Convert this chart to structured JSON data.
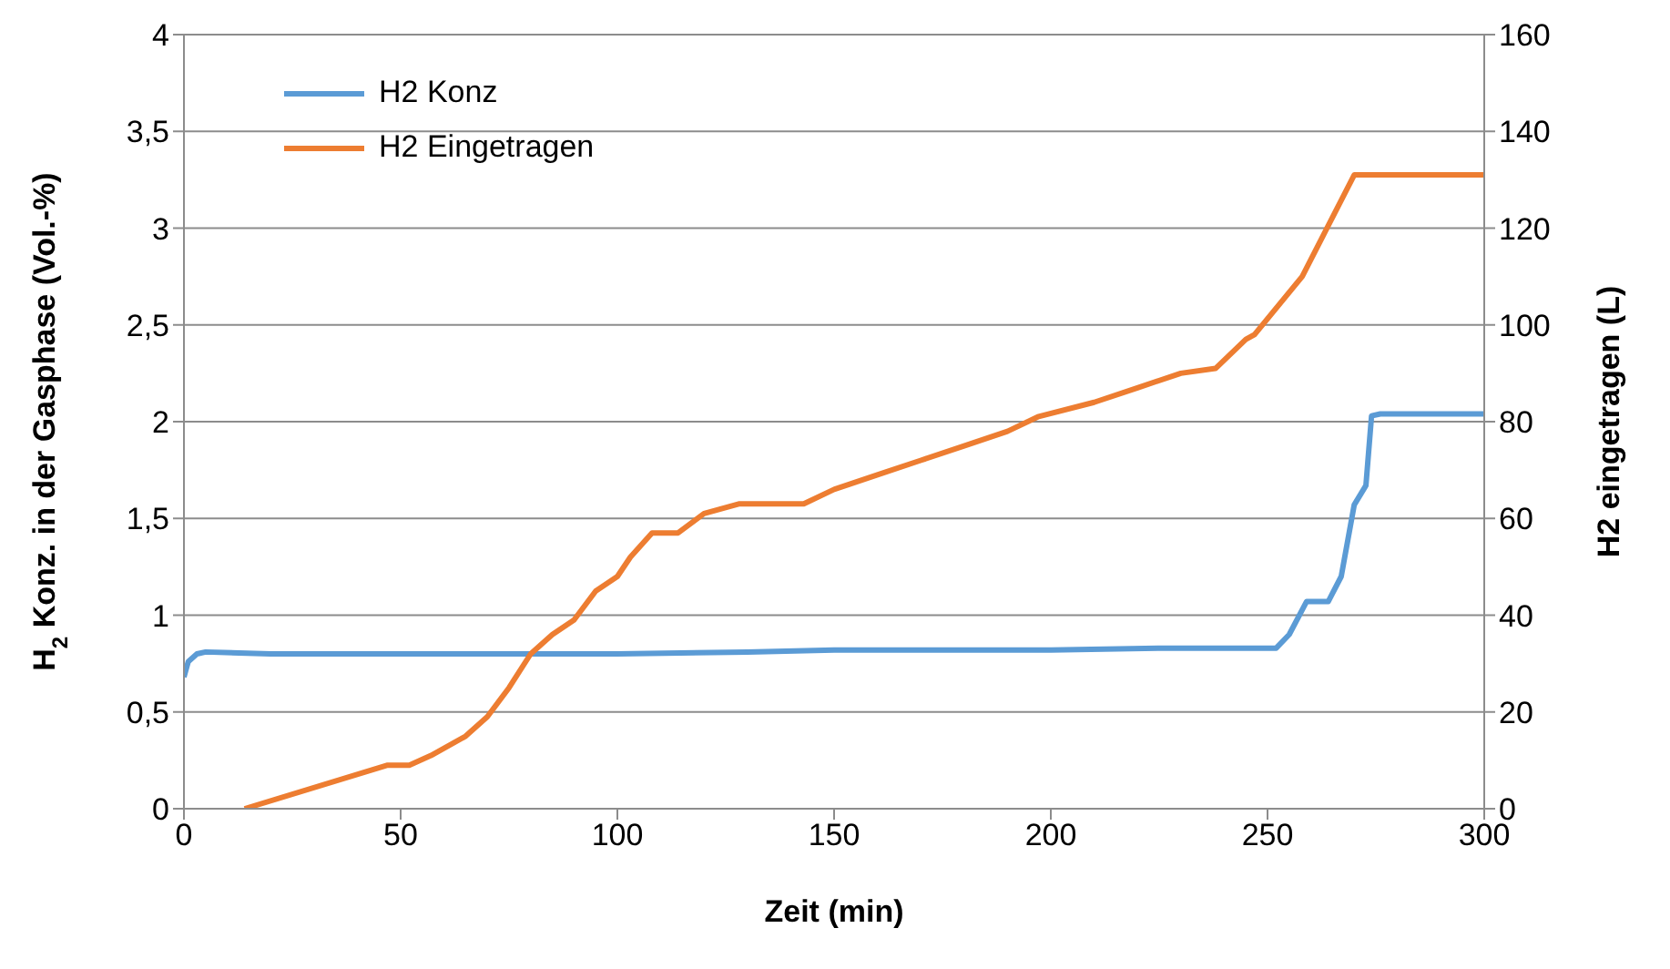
{
  "chart_data": {
    "type": "line",
    "xlabel": "Zeit (min)",
    "ylabel": "H$_{2}$ Konz. in der Gasphase (Vol.-%)",
    "y2label": "H2 eingetragen (L)",
    "xlim": [
      0,
      300
    ],
    "xticks": [
      0,
      50,
      100,
      150,
      200,
      250,
      300
    ],
    "ylim": [
      0,
      4
    ],
    "yticks": [
      0,
      {
        "value": 0.5,
        "label": "0,5"
      },
      1,
      {
        "value": 1.5,
        "label": "1,5"
      },
      2,
      {
        "value": 2.5,
        "label": "2,5"
      },
      3,
      {
        "value": 3.5,
        "label": "3,5"
      },
      4
    ],
    "y2lim": [
      0,
      160
    ],
    "y2ticks": [
      0,
      20,
      40,
      60,
      80,
      100,
      120,
      140,
      160
    ],
    "grid": "y",
    "legend": "top left",
    "marker": "none",
    "line_style": "solid",
    "series": [
      {
        "name": "H2 Konz",
        "color": "#5b9bd5",
        "x": [
          0,
          1,
          3,
          5,
          20,
          50,
          80,
          100,
          130,
          150,
          200,
          225,
          252,
          255,
          259,
          264,
          267,
          270,
          272.7,
          274,
          276,
          300
        ],
        "values": [
          0.68,
          0.76,
          0.8,
          0.81,
          0.8,
          0.8,
          0.8,
          0.8,
          0.81,
          0.82,
          0.82,
          0.83,
          0.83,
          0.9,
          1.07,
          1.07,
          1.2,
          1.57,
          1.67,
          2.03,
          2.04,
          2.04
        ]
      },
      {
        "name": "H2 Eingetragen",
        "color": "#ed7d31",
        "axis": "y2",
        "x": [
          14,
          47,
          52,
          57,
          65,
          70,
          75,
          80,
          85,
          90,
          95,
          100,
          103,
          108,
          114,
          120,
          128,
          143,
          150,
          160,
          170,
          180,
          190,
          197,
          210,
          220,
          230,
          238,
          245,
          247,
          258,
          270,
          300
        ],
        "values": [
          0,
          9,
          9,
          11,
          15,
          19,
          25,
          32,
          36,
          39,
          45,
          48,
          52,
          57,
          57,
          61,
          63,
          63,
          66,
          69,
          72,
          75,
          78,
          81,
          84,
          87,
          90,
          91,
          97,
          98,
          110,
          131,
          131
        ]
      }
    ]
  }
}
